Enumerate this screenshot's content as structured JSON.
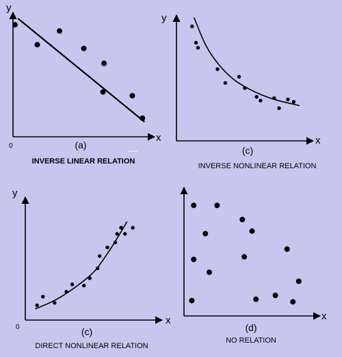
{
  "panels": [
    {
      "id": "a",
      "tag": "(a)",
      "caption": "INVERSE LINEAR RELATION",
      "x_label": "x",
      "y_label": "y",
      "origin_label": "0",
      "relation": "inverse-linear",
      "trend": "straight-line",
      "points": [
        [
          0.1,
          9.0
        ],
        [
          1.2,
          7.4
        ],
        [
          2.3,
          8.5
        ],
        [
          3.5,
          7.1
        ],
        [
          4.5,
          5.9
        ],
        [
          4.45,
          3.6
        ],
        [
          5.9,
          3.3
        ],
        [
          6.4,
          1.5
        ]
      ],
      "fit_line": [
        [
          0.25,
          9.5
        ],
        [
          6.5,
          1.2
        ]
      ]
    },
    {
      "id": "b",
      "tag": "(c)",
      "caption": "INVERSE NONLINEAR RELATION",
      "x_label": "x",
      "y_label": "y",
      "origin_label": "",
      "relation": "inverse-nonlinear",
      "trend": "decreasing-curve",
      "points": [
        [
          0.8,
          9.1
        ],
        [
          1.0,
          7.8
        ],
        [
          1.1,
          7.4
        ],
        [
          2.1,
          5.7
        ],
        [
          2.5,
          4.6
        ],
        [
          3.2,
          5.1
        ],
        [
          3.5,
          4.2
        ],
        [
          4.1,
          3.5
        ],
        [
          4.3,
          3.2
        ],
        [
          5.0,
          3.4
        ],
        [
          5.25,
          2.6
        ],
        [
          5.7,
          3.3
        ],
        [
          6.0,
          3.1
        ]
      ],
      "fit_curve": [
        [
          0.9,
          9.8
        ],
        [
          1.5,
          7.6
        ],
        [
          2.2,
          6.0
        ],
        [
          3.0,
          4.8
        ],
        [
          4.0,
          3.9
        ],
        [
          5.0,
          3.3
        ],
        [
          6.3,
          2.8
        ]
      ]
    },
    {
      "id": "c",
      "tag": "(c)",
      "caption": "DIRECT NONLINEAR RELATION",
      "x_label": "x",
      "y_label": "y",
      "origin_label": "0",
      "relation": "direct-nonlinear",
      "trend": "increasing-curve",
      "points": [
        [
          0.6,
          1.2
        ],
        [
          0.9,
          1.9
        ],
        [
          1.5,
          1.4
        ],
        [
          2.1,
          2.3
        ],
        [
          2.4,
          2.9
        ],
        [
          3.0,
          2.8
        ],
        [
          3.3,
          3.4
        ],
        [
          3.7,
          4.2
        ],
        [
          3.8,
          5.2
        ],
        [
          4.2,
          5.9
        ],
        [
          4.6,
          6.3
        ],
        [
          4.7,
          7.0
        ],
        [
          4.9,
          7.5
        ],
        [
          5.1,
          7.0
        ],
        [
          5.5,
          7.5
        ]
      ],
      "fit_curve": [
        [
          0.5,
          0.9
        ],
        [
          1.5,
          1.6
        ],
        [
          2.5,
          2.6
        ],
        [
          3.5,
          3.9
        ],
        [
          4.2,
          5.4
        ],
        [
          4.8,
          6.9
        ],
        [
          5.2,
          8.0
        ]
      ]
    },
    {
      "id": "d",
      "tag": "(d)",
      "caption": "NO RELATION",
      "x_label": "x",
      "y_label": "",
      "origin_label": "",
      "relation": "none",
      "trend": "none",
      "points": [
        [
          0.5,
          8.6
        ],
        [
          1.7,
          8.6
        ],
        [
          3.0,
          7.5
        ],
        [
          1.1,
          6.4
        ],
        [
          3.5,
          6.6
        ],
        [
          5.3,
          5.2
        ],
        [
          0.5,
          4.4
        ],
        [
          1.3,
          3.4
        ],
        [
          3.1,
          4.6
        ],
        [
          4.7,
          1.6
        ],
        [
          5.9,
          2.7
        ],
        [
          0.4,
          1.2
        ],
        [
          3.7,
          1.3
        ],
        [
          5.6,
          1.1
        ]
      ],
      "fit_line": []
    }
  ],
  "colors": {
    "background": "#c8c6ee",
    "ink": "#000000",
    "paper_mark": "#ffffff"
  }
}
